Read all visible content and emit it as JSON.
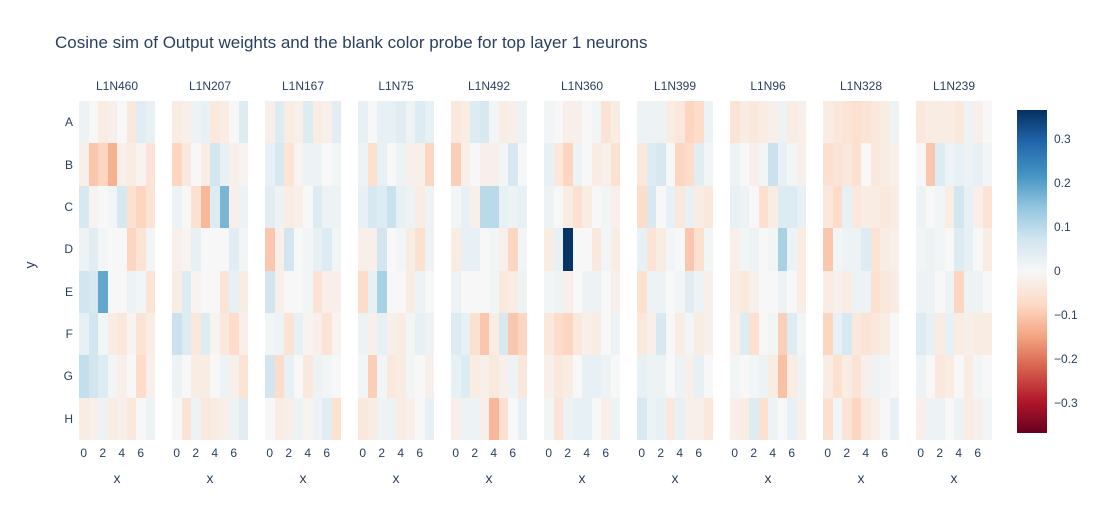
{
  "colors": {
    "text": "#2a3f5f",
    "background": "#ffffff",
    "colorbar_top": "#053061",
    "colorbar_mid": "#f7f7f7",
    "colorbar_bottom": "#67001f"
  },
  "chart_data": {
    "type": "heatmap",
    "title": "Cosine sim of Output weights and the blank color probe for top layer 1 neurons",
    "xlabel": "x",
    "ylabel": "y",
    "x_tick_labels": [
      "0",
      "2",
      "4",
      "6"
    ],
    "y_categories": [
      "A",
      "B",
      "C",
      "D",
      "E",
      "F",
      "G",
      "H"
    ],
    "x_categories": [
      0,
      1,
      2,
      3,
      4,
      5,
      6,
      7
    ],
    "zmin": -0.366,
    "zmax": 0.366,
    "legend_position": "right",
    "grid": false,
    "colorscale": [
      "#67001f",
      "#b2182b",
      "#d6604d",
      "#f4a582",
      "#fddbc7",
      "#f7f7f7",
      "#d1e5f0",
      "#92c5de",
      "#4393c3",
      "#2166ac",
      "#053061"
    ],
    "colorbar_ticks": [
      "0.3",
      "0.2",
      "0.1",
      "0",
      "−0.1",
      "−0.2",
      "−0.3"
    ],
    "colorbar_tick_values": [
      0.3,
      0.2,
      0.1,
      0,
      -0.1,
      -0.2,
      -0.3
    ],
    "facets": [
      {
        "name": "L1N460",
        "values": [
          [
            0.02,
            0.0,
            -0.03,
            -0.02,
            0.0,
            -0.04,
            0.04,
            0.03
          ],
          [
            -0.02,
            -0.1,
            -0.08,
            -0.13,
            -0.02,
            -0.03,
            -0.01,
            -0.05
          ],
          [
            0.06,
            -0.01,
            0.0,
            0.01,
            0.06,
            -0.06,
            -0.08,
            -0.05
          ],
          [
            0.02,
            0.04,
            0.01,
            0.0,
            0.0,
            -0.08,
            -0.05,
            0.01
          ],
          [
            0.07,
            0.06,
            0.19,
            0.0,
            0.0,
            0.02,
            0.01,
            -0.05
          ],
          [
            0.03,
            0.07,
            0.01,
            -0.03,
            -0.04,
            -0.01,
            -0.05,
            -0.03
          ],
          [
            0.09,
            0.07,
            0.05,
            0.01,
            -0.02,
            0.0,
            -0.07,
            -0.02
          ],
          [
            -0.03,
            -0.02,
            0.02,
            -0.03,
            -0.02,
            -0.04,
            0.0,
            0.02
          ]
        ]
      },
      {
        "name": "L1N207",
        "values": [
          [
            -0.03,
            -0.02,
            0.02,
            0.03,
            -0.04,
            -0.03,
            0.0,
            0.05
          ],
          [
            -0.08,
            -0.04,
            0.0,
            -0.03,
            0.07,
            0.03,
            -0.02,
            -0.01
          ],
          [
            0.02,
            0.0,
            -0.06,
            -0.12,
            0.05,
            0.17,
            -0.02,
            0.02
          ],
          [
            -0.02,
            -0.01,
            0.03,
            0.0,
            0.0,
            0.0,
            0.04,
            0.01
          ],
          [
            -0.03,
            0.05,
            -0.01,
            0.0,
            0.0,
            -0.05,
            0.03,
            -0.03
          ],
          [
            0.08,
            0.05,
            -0.04,
            0.05,
            -0.01,
            -0.04,
            -0.07,
            -0.02
          ],
          [
            0.02,
            0.0,
            -0.03,
            -0.03,
            0.0,
            0.02,
            -0.02,
            -0.05
          ],
          [
            0.0,
            -0.05,
            0.02,
            -0.04,
            -0.03,
            -0.02,
            0.02,
            0.04
          ]
        ]
      },
      {
        "name": "L1N167",
        "values": [
          [
            -0.02,
            0.05,
            -0.03,
            -0.02,
            0.05,
            -0.03,
            -0.02,
            0.04
          ],
          [
            0.03,
            0.06,
            -0.05,
            -0.01,
            0.02,
            0.02,
            0.0,
            0.01
          ],
          [
            0.04,
            0.02,
            -0.03,
            -0.02,
            0.0,
            0.05,
            0.02,
            0.02
          ],
          [
            -0.1,
            -0.02,
            0.07,
            0.0,
            0.01,
            0.03,
            0.05,
            0.01
          ],
          [
            0.07,
            -0.02,
            0.0,
            0.0,
            0.01,
            -0.05,
            -0.02,
            -0.02
          ],
          [
            0.01,
            0.02,
            -0.05,
            0.03,
            -0.01,
            -0.02,
            -0.05,
            -0.01
          ],
          [
            0.07,
            -0.07,
            0.03,
            0.0,
            -0.04,
            0.02,
            0.01,
            0.0
          ],
          [
            0.0,
            -0.03,
            -0.02,
            0.02,
            -0.01,
            0.02,
            0.04,
            -0.06
          ]
        ]
      },
      {
        "name": "L1N75",
        "values": [
          [
            0.03,
            0.0,
            0.03,
            0.03,
            0.04,
            0.02,
            0.05,
            0.03
          ],
          [
            0.02,
            -0.06,
            0.03,
            0.0,
            0.02,
            -0.02,
            -0.02,
            -0.08
          ],
          [
            0.03,
            0.06,
            0.05,
            0.08,
            0.03,
            0.02,
            -0.03,
            0.02
          ],
          [
            -0.02,
            -0.02,
            0.07,
            0.0,
            0.01,
            -0.03,
            -0.06,
            0.02
          ],
          [
            -0.07,
            0.03,
            0.12,
            0.0,
            0.0,
            -0.03,
            0.02,
            0.0
          ],
          [
            0.02,
            -0.02,
            0.03,
            -0.02,
            -0.03,
            0.01,
            0.03,
            0.02
          ],
          [
            0.01,
            -0.09,
            0.01,
            -0.04,
            -0.03,
            0.01,
            0.0,
            -0.02
          ],
          [
            -0.04,
            -0.03,
            0.02,
            0.02,
            -0.03,
            -0.02,
            0.0,
            0.03
          ]
        ]
      },
      {
        "name": "L1N492",
        "values": [
          [
            -0.04,
            -0.03,
            0.05,
            0.06,
            0.01,
            -0.03,
            -0.02,
            0.02
          ],
          [
            -0.09,
            -0.02,
            0.0,
            -0.02,
            -0.02,
            0.01,
            0.06,
            0.0
          ],
          [
            0.01,
            0.03,
            -0.02,
            0.1,
            0.1,
            0.03,
            0.02,
            0.03
          ],
          [
            -0.03,
            0.03,
            0.03,
            0.0,
            0.01,
            -0.02,
            -0.08,
            0.01
          ],
          [
            0.02,
            0.0,
            0.0,
            0.0,
            0.01,
            -0.04,
            -0.03,
            0.02
          ],
          [
            0.05,
            0.03,
            -0.06,
            -0.1,
            -0.03,
            0.06,
            -0.1,
            -0.08
          ],
          [
            0.03,
            0.05,
            -0.03,
            -0.02,
            -0.04,
            -0.02,
            0.02,
            -0.04
          ],
          [
            -0.02,
            0.02,
            0.02,
            -0.02,
            -0.12,
            -0.06,
            0.0,
            0.03
          ]
        ]
      },
      {
        "name": "L1N360",
        "values": [
          [
            0.01,
            0.0,
            -0.02,
            -0.02,
            0.0,
            0.01,
            -0.05,
            -0.03
          ],
          [
            0.03,
            -0.04,
            -0.08,
            0.02,
            0.0,
            -0.03,
            -0.02,
            -0.06
          ],
          [
            0.02,
            0.0,
            -0.03,
            -0.06,
            -0.03,
            0.0,
            0.01,
            -0.02
          ],
          [
            -0.03,
            0.03,
            0.36,
            0.0,
            0.0,
            -0.04,
            0.01,
            -0.03
          ],
          [
            0.01,
            0.02,
            -0.02,
            0.0,
            0.02,
            0.02,
            0.0,
            -0.02
          ],
          [
            -0.04,
            -0.07,
            -0.08,
            -0.04,
            -0.02,
            -0.03,
            0.0,
            0.02
          ],
          [
            -0.02,
            -0.04,
            -0.03,
            0.0,
            0.03,
            0.03,
            0.02,
            0.0
          ],
          [
            0.01,
            -0.05,
            0.02,
            0.03,
            0.03,
            0.0,
            -0.02,
            0.02
          ]
        ]
      },
      {
        "name": "L1N399",
        "values": [
          [
            0.02,
            0.02,
            0.02,
            -0.03,
            -0.04,
            -0.08,
            -0.07,
            0.02
          ],
          [
            -0.04,
            0.05,
            0.06,
            0.0,
            -0.08,
            -0.07,
            0.04,
            0.01
          ],
          [
            -0.07,
            0.06,
            0.0,
            0.03,
            -0.04,
            0.03,
            -0.03,
            -0.04
          ],
          [
            0.03,
            -0.05,
            -0.03,
            0.01,
            0.0,
            -0.1,
            -0.06,
            0.01
          ],
          [
            -0.06,
            0.02,
            0.02,
            0.0,
            0.01,
            0.04,
            0.02,
            -0.02
          ],
          [
            -0.04,
            -0.02,
            0.06,
            0.0,
            -0.03,
            0.01,
            -0.03,
            -0.02
          ],
          [
            0.03,
            0.02,
            0.02,
            0.0,
            0.02,
            -0.02,
            0.03,
            0.0
          ],
          [
            0.06,
            0.02,
            0.03,
            -0.04,
            0.03,
            -0.02,
            -0.02,
            -0.04
          ]
        ]
      },
      {
        "name": "L1N96",
        "values": [
          [
            -0.05,
            -0.03,
            -0.04,
            -0.03,
            -0.02,
            0.02,
            -0.03,
            -0.02
          ],
          [
            0.02,
            0.0,
            -0.02,
            0.01,
            0.08,
            0.03,
            0.01,
            -0.02
          ],
          [
            0.03,
            0.02,
            0.0,
            -0.06,
            -0.03,
            0.05,
            0.05,
            0.03
          ],
          [
            -0.02,
            0.01,
            0.02,
            0.0,
            0.01,
            0.12,
            0.02,
            -0.03
          ],
          [
            -0.03,
            -0.04,
            -0.02,
            0.0,
            0.0,
            0.02,
            0.0,
            -0.03
          ],
          [
            -0.02,
            0.05,
            -0.06,
            0.0,
            0.01,
            -0.09,
            0.05,
            0.01
          ],
          [
            0.01,
            0.0,
            0.01,
            0.02,
            -0.03,
            -0.11,
            -0.03,
            0.02
          ],
          [
            -0.02,
            -0.03,
            0.05,
            -0.06,
            0.02,
            0.0,
            0.03,
            -0.02
          ]
        ]
      },
      {
        "name": "L1N328",
        "values": [
          [
            -0.03,
            -0.04,
            -0.05,
            -0.06,
            -0.05,
            -0.04,
            -0.03,
            0.02
          ],
          [
            -0.06,
            -0.05,
            -0.04,
            -0.06,
            0.0,
            -0.04,
            -0.03,
            -0.02
          ],
          [
            -0.04,
            -0.07,
            0.03,
            -0.04,
            -0.03,
            -0.03,
            -0.04,
            -0.03
          ],
          [
            -0.1,
            0.01,
            0.02,
            0.02,
            0.05,
            -0.05,
            -0.03,
            -0.02
          ],
          [
            -0.03,
            -0.02,
            -0.03,
            0.02,
            0.02,
            -0.06,
            -0.04,
            -0.03
          ],
          [
            -0.08,
            0.03,
            0.06,
            -0.04,
            -0.05,
            -0.04,
            -0.03,
            0.0
          ],
          [
            -0.03,
            -0.06,
            -0.03,
            -0.05,
            -0.02,
            0.02,
            0.01,
            0.0
          ],
          [
            -0.06,
            0.01,
            -0.05,
            -0.08,
            -0.04,
            -0.02,
            0.0,
            0.03
          ]
        ]
      },
      {
        "name": "L1N239",
        "values": [
          [
            -0.04,
            -0.03,
            -0.03,
            -0.03,
            -0.04,
            0.02,
            -0.02,
            0.0
          ],
          [
            0.0,
            -0.1,
            0.05,
            0.02,
            0.03,
            0.02,
            0.03,
            0.01
          ],
          [
            0.02,
            0.0,
            0.01,
            -0.03,
            0.07,
            0.03,
            -0.02,
            -0.05
          ],
          [
            0.01,
            0.02,
            0.01,
            0.0,
            0.05,
            0.03,
            0.0,
            -0.03
          ],
          [
            0.02,
            0.02,
            0.0,
            0.02,
            -0.08,
            0.02,
            0.02,
            0.0
          ],
          [
            0.05,
            0.03,
            -0.03,
            0.03,
            -0.03,
            -0.02,
            -0.03,
            -0.03
          ],
          [
            0.02,
            0.0,
            -0.04,
            -0.03,
            0.0,
            -0.03,
            0.01,
            0.0
          ],
          [
            -0.02,
            0.02,
            0.02,
            0.0,
            0.02,
            -0.03,
            -0.02,
            0.01
          ]
        ]
      }
    ]
  }
}
